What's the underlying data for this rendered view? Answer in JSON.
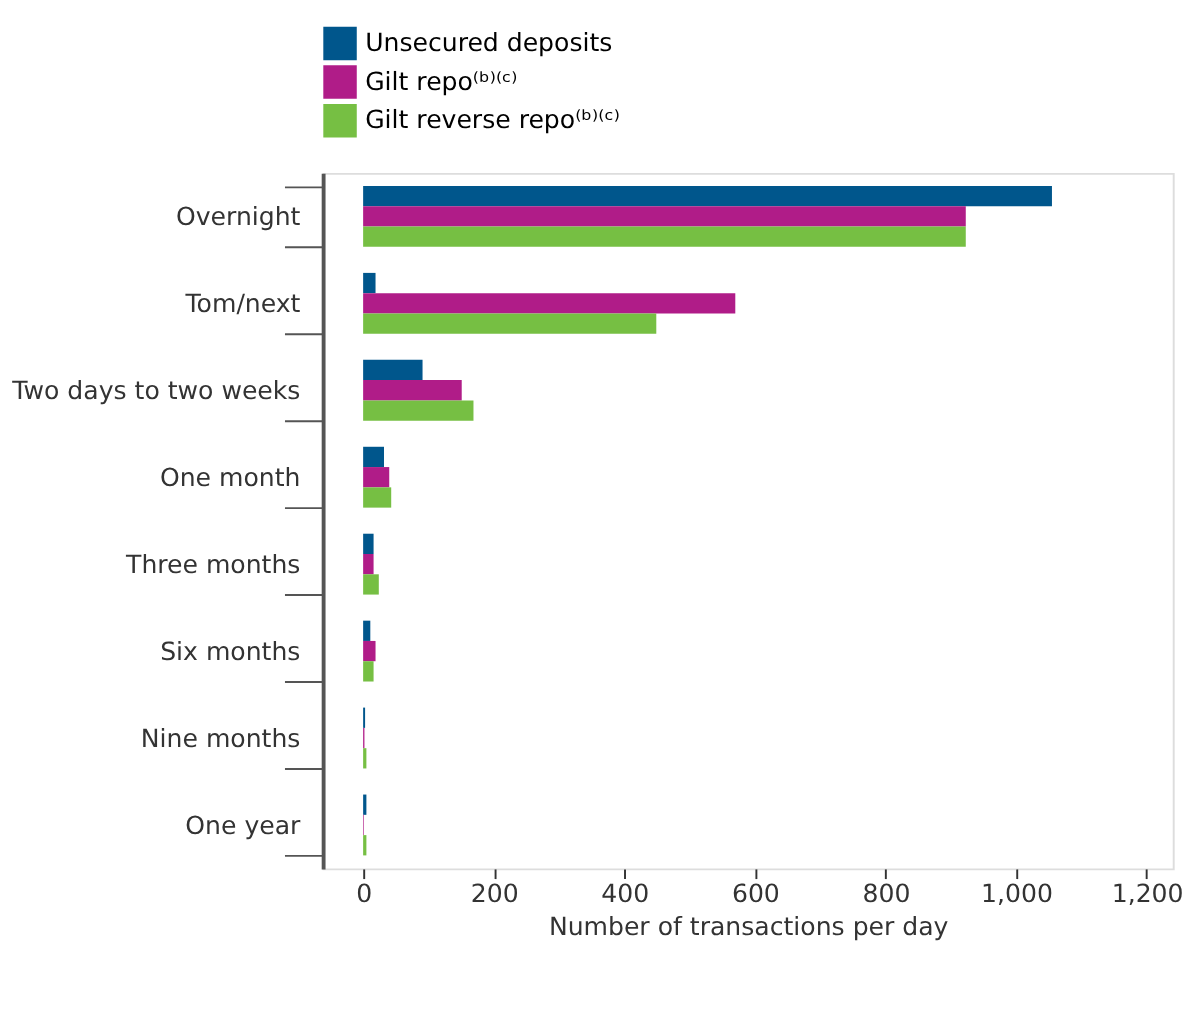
{
  "chart_data": {
    "type": "bar",
    "orientation": "horizontal",
    "xlabel": "Number of transactions per day",
    "categories": [
      "Overnight",
      "Tom/next",
      "Two days to two weeks",
      "One month",
      "Three months",
      "Six months",
      "Nine months",
      "One year"
    ],
    "series": [
      {
        "name": "Unsecured deposits",
        "color": "#00568c",
        "values": [
          1055,
          19,
          91,
          32,
          16,
          11,
          3,
          5
        ]
      },
      {
        "name": "Gilt repo⁽ᵇ⁾⁽ᶜ⁾",
        "color": "#b01c88",
        "values": [
          923,
          570,
          151,
          40,
          16,
          19,
          2,
          1
        ]
      },
      {
        "name": "Gilt reverse repo⁽ᵇ⁾⁽ᶜ⁾",
        "color": "#76bf43",
        "values": [
          923,
          449,
          169,
          43,
          24,
          16,
          5,
          5
        ]
      }
    ],
    "xlim": [
      -62,
      1240
    ],
    "xticks": [
      0,
      200,
      400,
      600,
      800,
      {
        "value": 1000,
        "label": "1,000"
      },
      {
        "value": 1200,
        "label": "1,200"
      }
    ],
    "grid": false,
    "legend": "top left"
  }
}
